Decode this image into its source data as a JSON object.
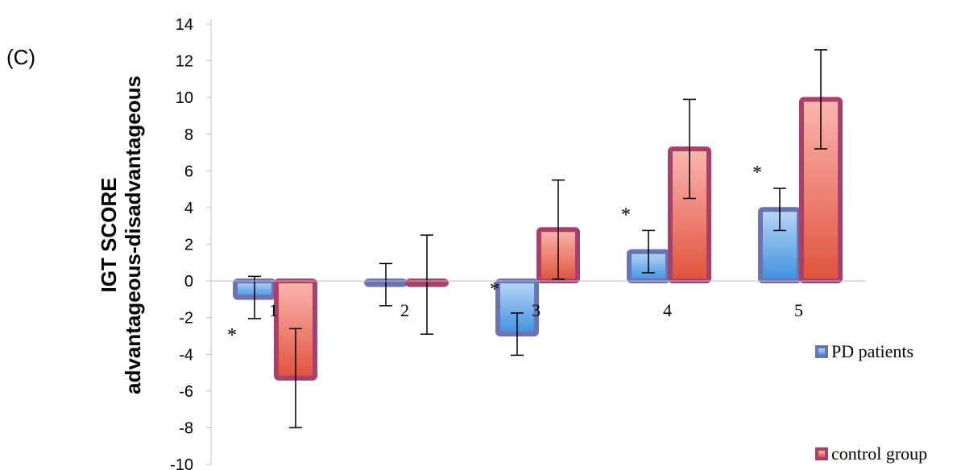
{
  "panel_label": "(C)",
  "chart_data": {
    "type": "bar",
    "ylabel_line1": "IGT SCORE",
    "ylabel_line2": "advantageous-disadvantageous",
    "categories": [
      "1",
      "2",
      "3",
      "4",
      "5"
    ],
    "ylim": [
      -10,
      14
    ],
    "yticks": [
      -10,
      -8,
      -6,
      -4,
      -2,
      0,
      2,
      4,
      6,
      8,
      10,
      12,
      14
    ],
    "series": [
      {
        "name": "PD patients",
        "values": [
          -0.9,
          -0.2,
          -2.9,
          1.6,
          3.9
        ],
        "error": [
          1.15,
          1.15,
          1.15,
          1.15,
          1.15
        ],
        "color": "#6b74b0",
        "fill_top": "#b9d8f6",
        "fill_bottom": "#3f8fe0"
      },
      {
        "name": "control group",
        "values": [
          -5.3,
          -0.2,
          2.8,
          7.2,
          9.9
        ],
        "error": [
          2.7,
          2.7,
          2.7,
          2.7,
          2.7
        ],
        "color": "#a8406c",
        "fill_top": "#fbb6b0",
        "fill_bottom": "#e0523c"
      }
    ],
    "significance": [
      "*",
      "",
      "*",
      "*",
      "*"
    ],
    "grid": false,
    "legend_position": "right"
  }
}
